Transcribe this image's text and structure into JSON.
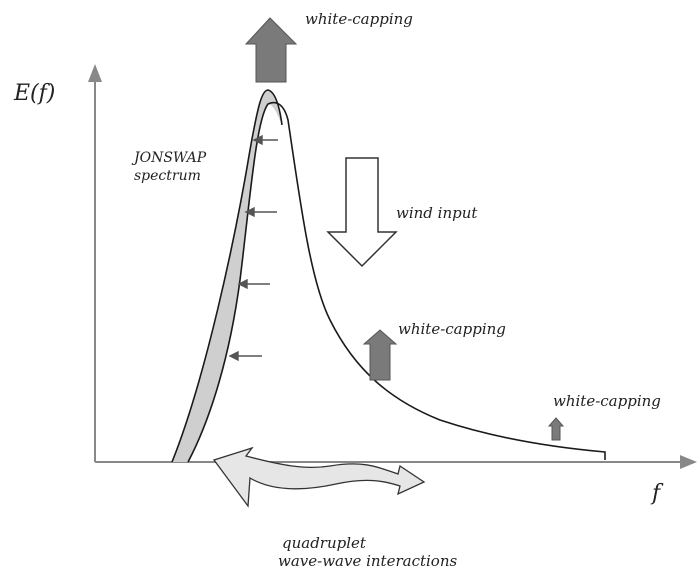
{
  "axes": {
    "y_label": "E(f)",
    "x_label": "f"
  },
  "labels": {
    "spectrum_line1": "JONSWAP",
    "spectrum_line2": "spectrum",
    "white_capping_peak": "white-capping",
    "wind_input": "wind input",
    "white_capping_mid": "white-capping",
    "white_capping_tail": "white-capping",
    "interactions_line1": "quadruplet",
    "interactions_line2": "wave-wave interactions"
  },
  "colors": {
    "axis": "#888888",
    "curve": "#1a1a1a",
    "shift_band": "#cfcfcf",
    "arrow_dark": "#7a7a7a",
    "arrow_outline": "#333333",
    "interaction_fill": "#e6e6e6"
  }
}
